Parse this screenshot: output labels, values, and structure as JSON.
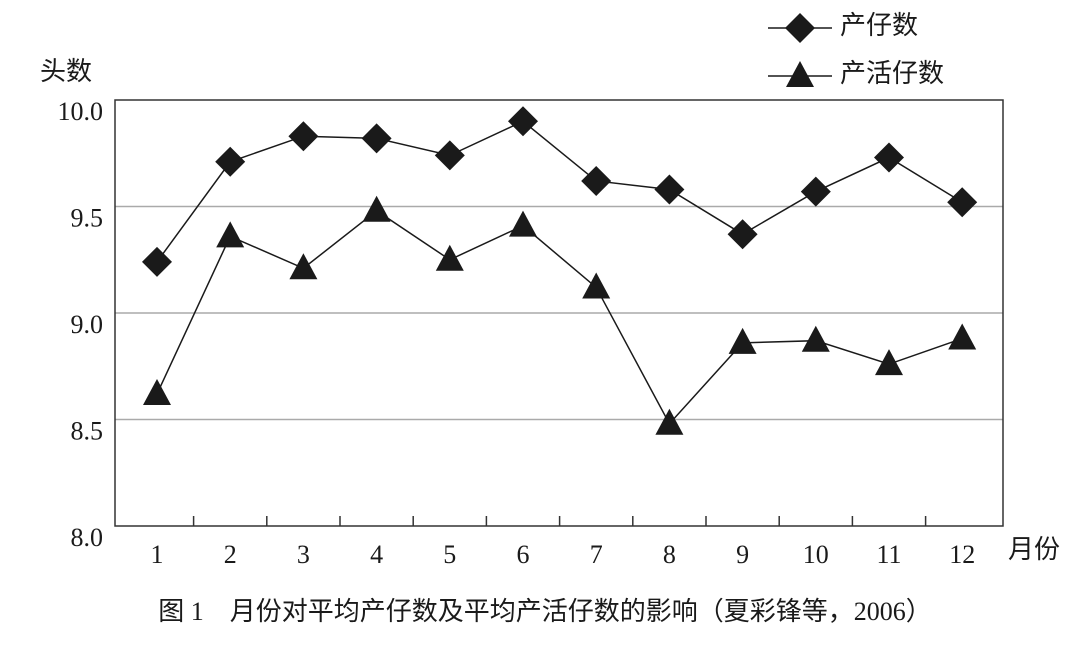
{
  "chart_data": {
    "type": "line",
    "y_label": "头数",
    "x_label": "月份",
    "caption": "图 1　月份对平均产仔数及平均产活仔数的影响（夏彩锋等，2006）",
    "categories": [
      "1",
      "2",
      "3",
      "4",
      "5",
      "6",
      "7",
      "8",
      "9",
      "10",
      "11",
      "12"
    ],
    "series": [
      {
        "name": "产仔数",
        "color": "#1a1a1a",
        "marker": "diamond",
        "values": [
          9.24,
          9.71,
          9.83,
          9.82,
          9.74,
          9.9,
          9.62,
          9.58,
          9.37,
          9.57,
          9.73,
          9.52
        ]
      },
      {
        "name": "产活仔数",
        "color": "#1a1a1a",
        "marker": "triangle",
        "values": [
          8.62,
          9.36,
          9.21,
          9.48,
          9.25,
          9.41,
          9.12,
          8.48,
          8.86,
          8.87,
          8.76,
          8.88
        ]
      }
    ],
    "ylim": [
      8,
      10
    ],
    "yticks": [
      {
        "value": 8,
        "label": "8.0"
      },
      {
        "value": 8.5,
        "label": "8.5"
      },
      {
        "value": 9,
        "label": "9.0"
      },
      {
        "value": 9.5,
        "label": "9.5"
      },
      {
        "value": 10,
        "label": "10.0"
      }
    ],
    "grid": true,
    "legend": "top-right"
  }
}
